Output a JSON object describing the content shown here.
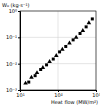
{
  "chart_data": {
    "type": "scatter",
    "y_label": "W₀ (kg·s⁻¹)",
    "x_label": "Heat flow (MW/m²)",
    "log": true,
    "grid": true,
    "xlim": [
      10,
      1000
    ],
    "ylim": [
      0.001,
      1
    ],
    "xticks": [
      {
        "value": 10,
        "label": "10¹"
      },
      {
        "value": 100,
        "label": "10²"
      },
      {
        "value": 1000,
        "label": "10³"
      }
    ],
    "yticks": [
      {
        "value": 0.001,
        "label": "10⁻³"
      },
      {
        "value": 0.01,
        "label": "10⁻²"
      },
      {
        "value": 0.1,
        "label": "10⁻¹"
      },
      {
        "value": 1,
        "label": "10⁰"
      }
    ],
    "series": [
      {
        "marker": "triangle",
        "color": "#000000",
        "x": [
          14,
          20,
          28,
          40,
          60,
          90,
          130,
          200,
          300,
          450,
          650
        ],
        "values": [
          0.0018,
          0.003,
          0.0045,
          0.007,
          0.012,
          0.02,
          0.035,
          0.06,
          0.1,
          0.18,
          0.35
        ]
      },
      {
        "marker": "square",
        "color": "#000000",
        "x": [
          17,
          25,
          35,
          50,
          75,
          110,
          160,
          250,
          380,
          550,
          800
        ],
        "values": [
          0.002,
          0.0035,
          0.006,
          0.009,
          0.015,
          0.028,
          0.045,
          0.08,
          0.14,
          0.25,
          0.5
        ]
      }
    ]
  }
}
